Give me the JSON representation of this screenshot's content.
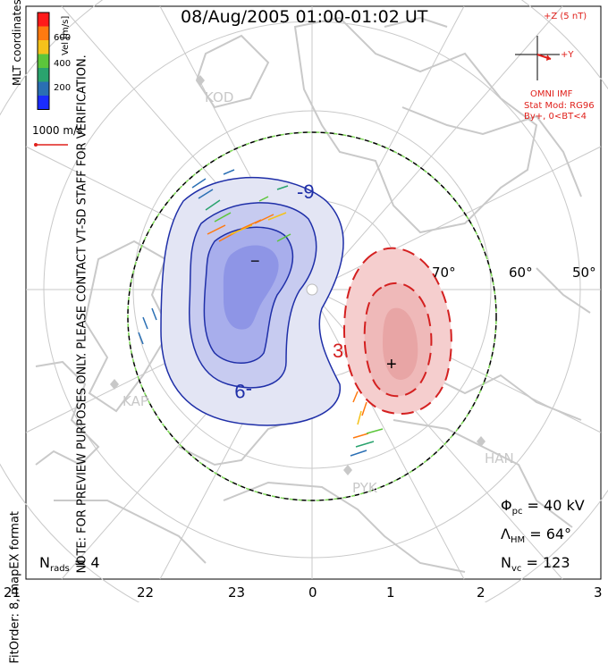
{
  "title": "08/Aug/2005  01:00-01:02 UT",
  "color_bar": {
    "label": "Vel [m/s]",
    "ticks": [
      "600",
      "400",
      "200"
    ],
    "colors": [
      "#ff1a1a",
      "#ff7a10",
      "#f5c21b",
      "#5cc63b",
      "#2aa36e",
      "#2a6fb4",
      "#1a2cff"
    ]
  },
  "coordinates_label": "MLT coordinates",
  "reference_vector": "1000 m/s",
  "imf": {
    "z_label": "+Z (5 nT)",
    "y_label": "+Y",
    "source": "OMNI IMF",
    "model": "Stat Mod: RG96",
    "condition": "By+, 0<BT<4"
  },
  "note": "NOTE: FOR PREVIEW PURPOSES ONLY. PLEASE CONTACT VT-SD STAFF FOR VERIFICATION.",
  "fit_info": "FitOrder: 8,  mapEX format",
  "stats": {
    "phi_pc_label": "Φ",
    "phi_pc_sub": "pc",
    "phi_pc_value": "= 40 kV",
    "lambda_hm_label": "Λ",
    "lambda_hm_sub": "HM",
    "lambda_hm_value": "= 64°",
    "n_vc_label": "N",
    "n_vc_sub": "vc",
    "n_vc_value": "= 123",
    "n_rads_label": "N",
    "n_rads_sub": "rads",
    "n_rads_value": "= 4"
  },
  "mlt_ticks": [
    "21",
    "22",
    "23",
    "0",
    "1",
    "2",
    "3"
  ],
  "latitude_labels": [
    "70°",
    "60°",
    "50°"
  ],
  "contours": {
    "negative_cell": {
      "label": "-9",
      "marker": "−",
      "color": "#1f2fa8"
    },
    "positive_cell": {
      "label": "3",
      "marker": "+",
      "color": "#d42020"
    }
  },
  "radar_sites": [
    "KOD",
    "KAP",
    "PYK",
    "HAN"
  ],
  "colors": {
    "neg_fill": "#6f78e0",
    "pos_fill": "#e8a5a5",
    "map_lines": "#c9c9c9",
    "boundary_green": "#7ed957"
  }
}
